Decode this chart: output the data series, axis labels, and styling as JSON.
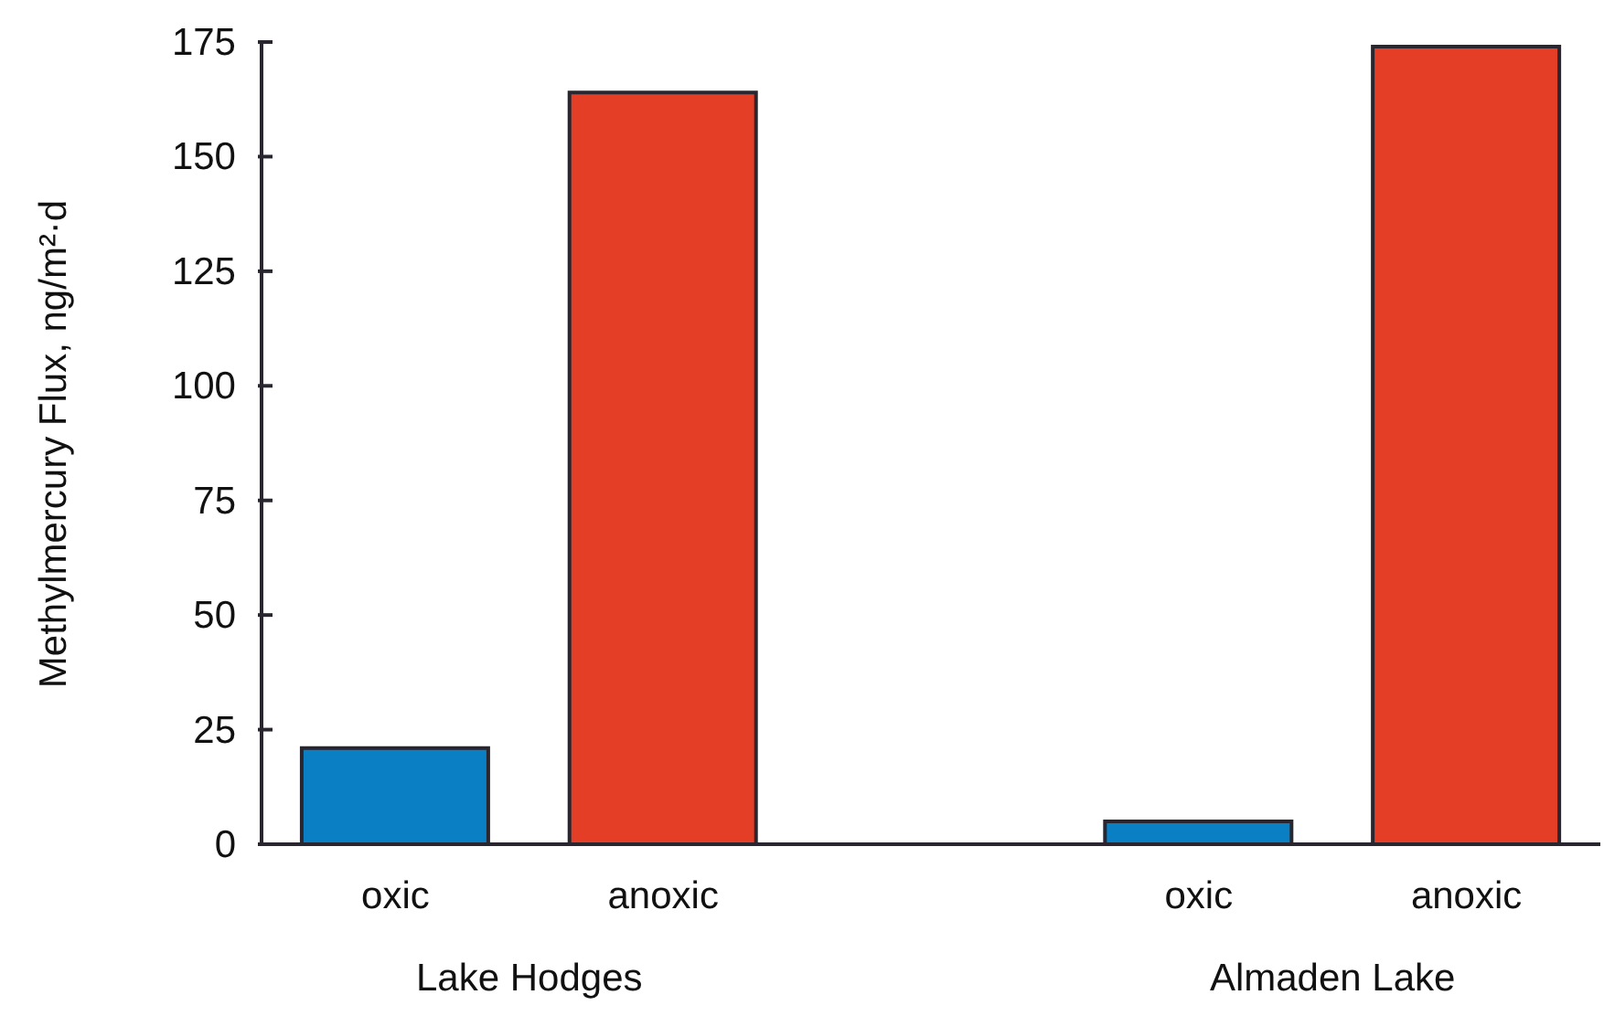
{
  "chart_data": {
    "type": "bar",
    "ylabel": "Methylmercury Flux, ng/m²·d",
    "categories": [
      "oxic",
      "anoxic",
      null,
      "oxic",
      "anoxic"
    ],
    "values": [
      21,
      164,
      null,
      5,
      174
    ],
    "colors": [
      "#0a7fc4",
      "#e53e26",
      null,
      "#0a7fc4",
      "#e53e26"
    ],
    "ylim": [
      0,
      175
    ],
    "yticks": [
      0,
      25,
      50,
      75,
      100,
      125,
      150,
      175
    ],
    "grid": false,
    "annotations": [
      "Lake Hodges",
      "Almaden Lake"
    ]
  }
}
